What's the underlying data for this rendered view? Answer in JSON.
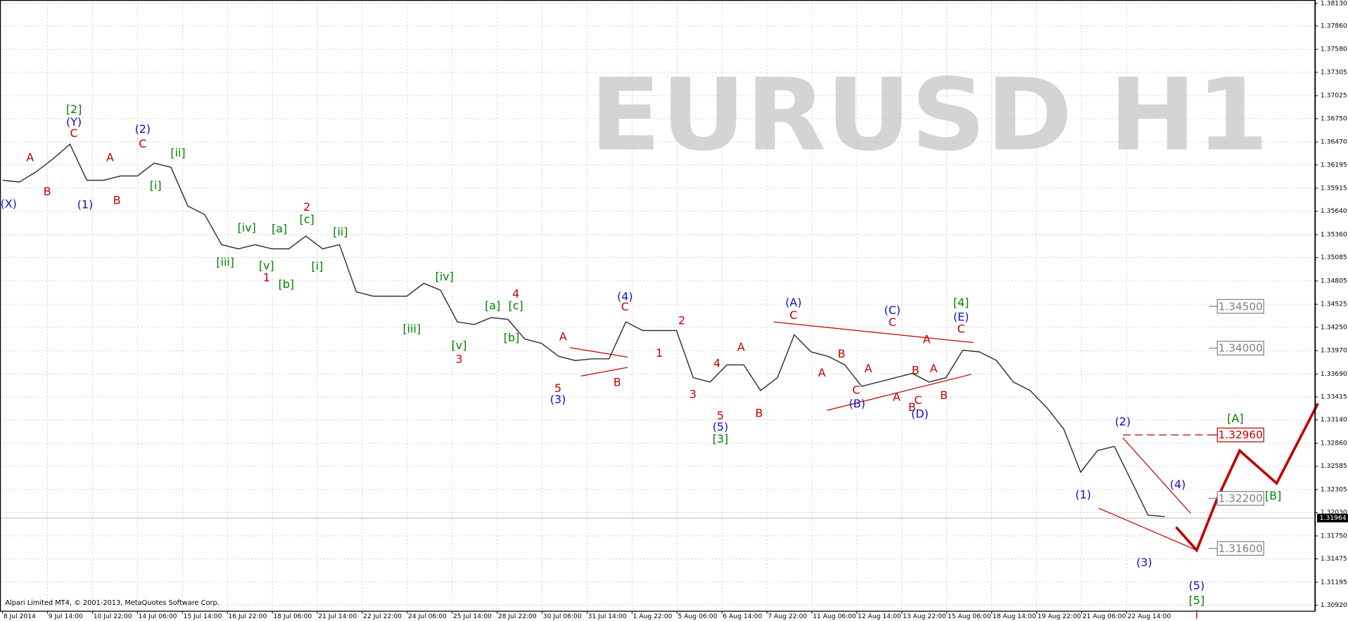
{
  "chart_data": {
    "type": "line",
    "title": "EURUSD H1",
    "credit": "Alpari Limited MT4, © 2001-2013, MetaQuotes Software Corp.",
    "color": "#333333",
    "grid": true,
    "values": [
      1.36011,
      1.35991,
      1.36114,
      1.36268,
      1.36443,
      1.36011,
      1.36011,
      1.36063,
      1.36063,
      1.36217,
      1.36166,
      1.35703,
      1.356,
      1.3524,
      1.35189,
      1.3524,
      1.35189,
      1.35189,
      1.35343,
      1.35189,
      1.3524,
      1.34674,
      1.34623,
      1.34623,
      1.34623,
      1.34777,
      1.34695,
      1.34314,
      1.34283,
      1.34366,
      1.34345,
      1.34109,
      1.34057,
      1.33903,
      1.33851,
      1.33872,
      1.33872,
      1.34314,
      1.34211,
      1.34211,
      1.34211,
      1.33646,
      1.33594,
      1.338,
      1.338,
      1.33492,
      1.33646,
      1.3416,
      1.33954,
      1.33903,
      1.338,
      1.33543,
      1.33594,
      1.33646,
      1.33697,
      1.33594,
      1.33646,
      1.33975,
      1.33954,
      1.33851,
      1.33594,
      1.33492,
      1.33286,
      1.33029,
      1.32514,
      1.32772,
      1.32823,
      1.32412,
      1.32,
      1.3198
    ],
    "x_tick_labels": [
      "8 Jul 2014",
      "9 Jul 14:00",
      "10 Jul 22:00",
      "14 Jul 06:00",
      "15 Jul 14:00",
      "16 Jul 22:00",
      "18 Jul 06:00",
      "21 Jul 14:00",
      "22 Jul 22:00",
      "24 Jul 06:00",
      "25 Jul 14:00",
      "28 Jul 22:00",
      "30 Jul 06:00",
      "31 Jul 14:00",
      "1 Aug 22:00",
      "5 Aug 06:00",
      "6 Aug 14:00",
      "7 Aug 22:00",
      "11 Aug 06:00",
      "12 Aug 14:00",
      "13 Aug 22:00",
      "15 Aug 06:00",
      "18 Aug 14:00",
      "19 Aug 22:00",
      "21 Aug 06:00",
      "22 Aug 14:00"
    ],
    "ylim": [
      1.30848,
      1.38171
    ],
    "yticks": [
      {
        "value": 1.3813,
        "label": "1.38130"
      },
      {
        "value": 1.3786,
        "label": "1.37860"
      },
      {
        "value": 1.3758,
        "label": "1.37580"
      },
      {
        "value": 1.37305,
        "label": "1.37305"
      },
      {
        "value": 1.37025,
        "label": "1.37025"
      },
      {
        "value": 1.3675,
        "label": "1.36750"
      },
      {
        "value": 1.3647,
        "label": "1.36470"
      },
      {
        "value": 1.36195,
        "label": "1.36195"
      },
      {
        "value": 1.35915,
        "label": "1.35915"
      },
      {
        "value": 1.3564,
        "label": "1.35640"
      },
      {
        "value": 1.3536,
        "label": "1.35360"
      },
      {
        "value": 1.35085,
        "label": "1.35085"
      },
      {
        "value": 1.34805,
        "label": "1.34805"
      },
      {
        "value": 1.34525,
        "label": "1.34525"
      },
      {
        "value": 1.3425,
        "label": "1.34250"
      },
      {
        "value": 1.3397,
        "label": "1.33970"
      },
      {
        "value": 1.3369,
        "label": "1.33690"
      },
      {
        "value": 1.33415,
        "label": "1.33415"
      },
      {
        "value": 1.3314,
        "label": "1.33140"
      },
      {
        "value": 1.3286,
        "label": "1.32860"
      },
      {
        "value": 1.32585,
        "label": "1.32585"
      },
      {
        "value": 1.32305,
        "label": "1.32305"
      },
      {
        "value": 1.3203,
        "label": "1.32030"
      },
      {
        "value": 1.3175,
        "label": "1.31750"
      },
      {
        "value": 1.31475,
        "label": "1.31475"
      },
      {
        "value": 1.31195,
        "label": "1.31195"
      },
      {
        "value": 1.3092,
        "label": "1.30920"
      }
    ],
    "current_price": {
      "value": 1.31964,
      "label": "1.31964"
    },
    "levels": [
      {
        "value": 1.345,
        "label": "1.34500",
        "color": "#808080"
      },
      {
        "value": 1.34,
        "label": "1.34000",
        "color": "#808080"
      },
      {
        "value": 1.3296,
        "label": "1.32960",
        "color": "#c00000"
      },
      {
        "value": 1.322,
        "label": "1.32200",
        "color": "#808080"
      },
      {
        "value": 1.316,
        "label": "1.31600",
        "color": "#808080"
      }
    ],
    "annotations": [
      {
        "text": "(X)",
        "color": "#1010c0"
      },
      {
        "text": "[2]",
        "color": "#008000"
      },
      {
        "text": "(Y)",
        "color": "#1010c0"
      },
      {
        "text": "C",
        "color": "#c00000"
      },
      {
        "text": "A",
        "color": "#c00000"
      },
      {
        "text": "B",
        "color": "#c00000"
      },
      {
        "text": "(1)",
        "color": "#1010c0"
      },
      {
        "text": "A",
        "color": "#c00000"
      },
      {
        "text": "B",
        "color": "#c00000"
      },
      {
        "text": "(2)",
        "color": "#1010c0"
      },
      {
        "text": "C",
        "color": "#c00000"
      },
      {
        "text": "[ii]",
        "color": "#008000"
      },
      {
        "text": "[i]",
        "color": "#008000"
      },
      {
        "text": "[iv]",
        "color": "#008000"
      },
      {
        "text": "[a]",
        "color": "#008000"
      },
      {
        "text": "2",
        "color": "#c00000"
      },
      {
        "text": "[c]",
        "color": "#008000"
      },
      {
        "text": "[ii]",
        "color": "#008000"
      },
      {
        "text": "[iii]",
        "color": "#008000"
      },
      {
        "text": "[v]",
        "color": "#008000"
      },
      {
        "text": "1",
        "color": "#c00000"
      },
      {
        "text": "[b]",
        "color": "#008000"
      },
      {
        "text": "[i]",
        "color": "#008000"
      },
      {
        "text": "[iv]",
        "color": "#008000"
      },
      {
        "text": "[iii]",
        "color": "#008000"
      },
      {
        "text": "[a]",
        "color": "#008000"
      },
      {
        "text": "4",
        "color": "#c00000"
      },
      {
        "text": "[c]",
        "color": "#008000"
      },
      {
        "text": "[v]",
        "color": "#008000"
      },
      {
        "text": "3",
        "color": "#c00000"
      },
      {
        "text": "[b]",
        "color": "#008000"
      },
      {
        "text": "A",
        "color": "#c00000"
      },
      {
        "text": "(4)",
        "color": "#1010c0"
      },
      {
        "text": "C",
        "color": "#c00000"
      },
      {
        "text": "2",
        "color": "#c00000"
      },
      {
        "text": "1",
        "color": "#c00000"
      },
      {
        "text": "5",
        "color": "#c00000"
      },
      {
        "text": "(3)",
        "color": "#1010c0"
      },
      {
        "text": "B",
        "color": "#c00000"
      },
      {
        "text": "3",
        "color": "#c00000"
      },
      {
        "text": "4",
        "color": "#c00000"
      },
      {
        "text": "A",
        "color": "#c00000"
      },
      {
        "text": "5",
        "color": "#c00000"
      },
      {
        "text": "(5)",
        "color": "#1010c0"
      },
      {
        "text": "[3]",
        "color": "#008000"
      },
      {
        "text": "B",
        "color": "#c00000"
      },
      {
        "text": "(A)",
        "color": "#1010c0"
      },
      {
        "text": "C",
        "color": "#c00000"
      },
      {
        "text": "A",
        "color": "#c00000"
      },
      {
        "text": "B",
        "color": "#c00000"
      },
      {
        "text": "C",
        "color": "#c00000"
      },
      {
        "text": "(B)",
        "color": "#1010c0"
      },
      {
        "text": "A",
        "color": "#c00000"
      },
      {
        "text": "A",
        "color": "#c00000"
      },
      {
        "text": "B",
        "color": "#c00000"
      },
      {
        "text": "(C)",
        "color": "#1010c0"
      },
      {
        "text": "C",
        "color": "#c00000"
      },
      {
        "text": "A",
        "color": "#c00000"
      },
      {
        "text": "B",
        "color": "#c00000"
      },
      {
        "text": "C",
        "color": "#c00000"
      },
      {
        "text": "(D)",
        "color": "#1010c0"
      },
      {
        "text": "A",
        "color": "#c00000"
      },
      {
        "text": "B",
        "color": "#c00000"
      },
      {
        "text": "[4]",
        "color": "#008000"
      },
      {
        "text": "(E)",
        "color": "#1010c0"
      },
      {
        "text": "C",
        "color": "#c00000"
      },
      {
        "text": "(2)",
        "color": "#1010c0"
      },
      {
        "text": "(1)",
        "color": "#1010c0"
      },
      {
        "text": "(4)",
        "color": "#1010c0"
      },
      {
        "text": "(3)",
        "color": "#1010c0"
      },
      {
        "text": "[A]",
        "color": "#008000"
      },
      {
        "text": "[B]",
        "color": "#008000"
      },
      {
        "text": "(5)",
        "color": "#1010c0"
      },
      {
        "text": "[5]",
        "color": "#008000"
      },
      {
        "text": "i",
        "color": "#c00000"
      }
    ]
  }
}
